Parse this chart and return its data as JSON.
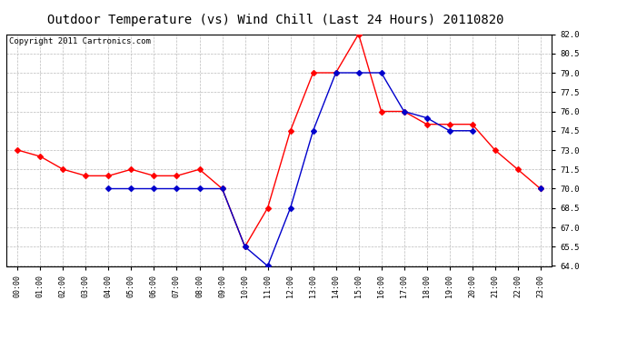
{
  "title": "Outdoor Temperature (vs) Wind Chill (Last 24 Hours) 20110820",
  "copyright": "Copyright 2011 Cartronics.com",
  "x_labels": [
    "00:00",
    "01:00",
    "02:00",
    "03:00",
    "04:00",
    "05:00",
    "06:00",
    "07:00",
    "08:00",
    "09:00",
    "10:00",
    "11:00",
    "12:00",
    "13:00",
    "14:00",
    "15:00",
    "16:00",
    "17:00",
    "18:00",
    "19:00",
    "20:00",
    "21:00",
    "22:00",
    "23:00"
  ],
  "temp_red": [
    73.0,
    72.5,
    71.5,
    71.0,
    71.0,
    71.5,
    71.0,
    71.0,
    71.5,
    70.0,
    65.5,
    68.5,
    74.5,
    79.0,
    79.0,
    82.0,
    76.0,
    76.0,
    75.0,
    75.0,
    75.0,
    73.0,
    71.5,
    70.0
  ],
  "wind_chill_blue": [
    null,
    null,
    null,
    null,
    70.0,
    70.0,
    70.0,
    70.0,
    70.0,
    70.0,
    65.5,
    64.0,
    68.5,
    74.5,
    79.0,
    79.0,
    79.0,
    76.0,
    75.5,
    74.5,
    74.5,
    null,
    null,
    70.0
  ],
  "ylim": [
    64.0,
    82.0
  ],
  "yticks": [
    64.0,
    65.5,
    67.0,
    68.5,
    70.0,
    71.5,
    73.0,
    74.5,
    76.0,
    77.5,
    79.0,
    80.5,
    82.0
  ],
  "bg_color": "#ffffff",
  "grid_color": "#bbbbbb",
  "red_color": "#ff0000",
  "blue_color": "#0000cc",
  "title_fontsize": 10,
  "copyright_fontsize": 6.5,
  "marker": "D",
  "markersize": 3,
  "linewidth": 1.0
}
